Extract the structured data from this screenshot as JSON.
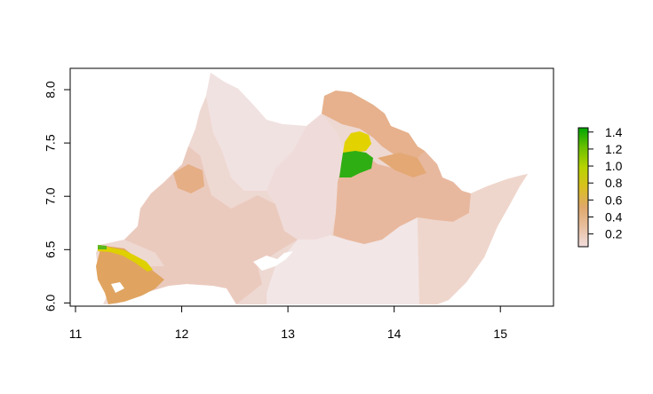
{
  "chart_data": {
    "type": "heatmap",
    "title": "",
    "xlabel": "",
    "ylabel": "",
    "xlim": [
      10.95,
      15.5
    ],
    "ylim": [
      5.97,
      8.2
    ],
    "x_ticks": [
      "11",
      "12",
      "13",
      "14",
      "15"
    ],
    "y_ticks": [
      "6.0",
      "6.5",
      "7.0",
      "7.5",
      "8.0"
    ],
    "legend": {
      "placement": "right",
      "ticks": [
        "0.2",
        "0.4",
        "0.6",
        "0.8",
        "1.0",
        "1.2",
        "1.4"
      ],
      "range": [
        0.05,
        1.45
      ],
      "colors": [
        "#f2dede",
        "#e7bf9f",
        "#e0a86a",
        "#d9c020",
        "#b8d400",
        "#6cc000",
        "#00a600"
      ]
    },
    "colors": {
      "very_low": "#f2e4e4",
      "low": "#edd4cc",
      "low_mid": "#eac6b6",
      "mid": "#e5ae85",
      "mid_high": "#e0a460",
      "yellow": "#e2d400",
      "yellow_green": "#c9d800",
      "green": "#2fae14"
    }
  }
}
